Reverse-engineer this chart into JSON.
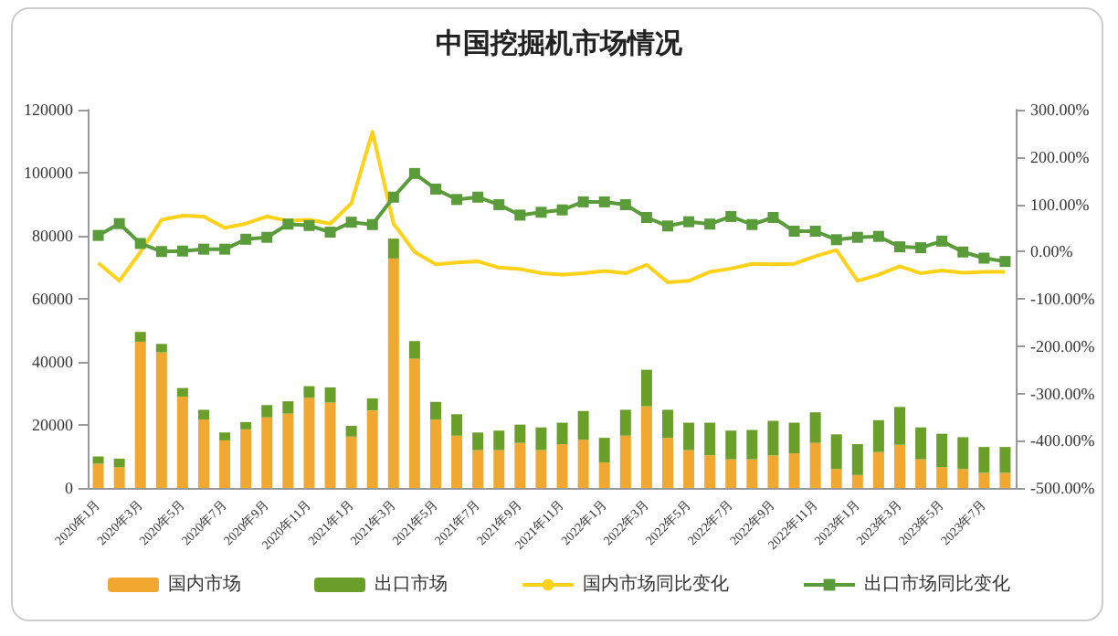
{
  "chart_data": {
    "type": "bar",
    "title": "中国挖掘机市场情况",
    "categories": [
      "2020年1月",
      null,
      "2020年3月",
      null,
      "2020年5月",
      null,
      "2020年7月",
      null,
      "2020年9月",
      null,
      "2020年11月",
      null,
      "2021年1月",
      null,
      "2021年3月",
      null,
      "2021年5月",
      null,
      "2021年7月",
      null,
      "2021年9月",
      null,
      "2021年11月",
      null,
      "2022年1月",
      null,
      "2022年3月",
      null,
      "2022年5月",
      null,
      "2022年7月",
      null,
      "2022年9月",
      null,
      "2022年11月",
      null,
      "2023年1月",
      null,
      "2023年3月",
      null,
      "2023年5月",
      null,
      "2023年7月",
      null
    ],
    "stacked": true,
    "series": [
      {
        "name": "国内市场",
        "color": "#f0a830",
        "values": [
          7700,
          6600,
          46400,
          43000,
          29000,
          21700,
          15100,
          18600,
          22400,
          23600,
          28600,
          27100,
          16300,
          24600,
          72800,
          41000,
          21700,
          16600,
          12000,
          12000,
          14300,
          12000,
          13900,
          15300,
          8100,
          16600,
          25900,
          15900,
          12000,
          10400,
          9100,
          9100,
          10300,
          11000,
          14300,
          6000,
          4100,
          11400,
          13700,
          9100,
          6600,
          6000,
          4800,
          4800
        ]
      },
      {
        "name": "出口市场",
        "color": "#6a9f2a",
        "values": [
          2300,
          2700,
          3100,
          2700,
          2700,
          3100,
          2500,
          2300,
          3900,
          3900,
          3700,
          4800,
          3400,
          3800,
          6300,
          5600,
          5600,
          6800,
          5600,
          6200,
          5800,
          7200,
          6800,
          9100,
          7800,
          8200,
          11600,
          8900,
          8700,
          10300,
          9100,
          9300,
          11000,
          9700,
          9700,
          11000,
          9800,
          10100,
          12000,
          10100,
          10600,
          10100,
          8200,
          8200
        ]
      },
      {
        "name": "国内市场同比变化",
        "type": "line",
        "axis": "y2",
        "marker": "none",
        "color": "#ffd21a",
        "values": [
          -24,
          -62,
          -1,
          67,
          76,
          74,
          50,
          59,
          74,
          65,
          67,
          59,
          102,
          253,
          59,
          -1,
          -27,
          -23,
          -21,
          -34,
          -37,
          -46,
          -49,
          -46,
          -41,
          -46,
          -28,
          -65,
          -62,
          -43,
          -36,
          -26,
          -27,
          -26,
          -10,
          3,
          -62,
          -49,
          -31,
          -46,
          -40,
          -45,
          -43,
          -43
        ]
      },
      {
        "name": "出口市场同比变化",
        "type": "line",
        "axis": "y2",
        "marker": "square",
        "color": "#5a9b3a",
        "values": [
          34,
          59,
          17,
          0,
          1,
          5,
          5,
          26,
          30,
          58,
          55,
          41,
          62,
          57,
          115,
          165,
          132,
          110,
          115,
          99,
          77,
          83,
          88,
          105,
          105,
          99,
          72,
          54,
          63,
          58,
          74,
          57,
          72,
          43,
          43,
          25,
          30,
          32,
          10,
          8,
          22,
          -1,
          -14,
          -21
        ]
      }
    ],
    "ylim": [
      0,
      120000
    ],
    "yticks": [
      0,
      20000,
      40000,
      60000,
      80000,
      100000,
      120000
    ],
    "y2lim": [
      -500,
      300
    ],
    "y2ticks": [
      {
        "value": -500,
        "label": "-500.00%"
      },
      {
        "value": -400,
        "label": "-400.00%"
      },
      {
        "value": -300,
        "label": "-300.00%"
      },
      {
        "value": -200,
        "label": "-200.00%"
      },
      {
        "value": -100,
        "label": "-100.00%"
      },
      {
        "value": 0,
        "label": "0.00%"
      },
      {
        "value": 100,
        "label": "100.00%"
      },
      {
        "value": 200,
        "label": "200.00%"
      },
      {
        "value": 300,
        "label": "300.00%"
      }
    ],
    "grid": false,
    "legend": "bottom"
  }
}
